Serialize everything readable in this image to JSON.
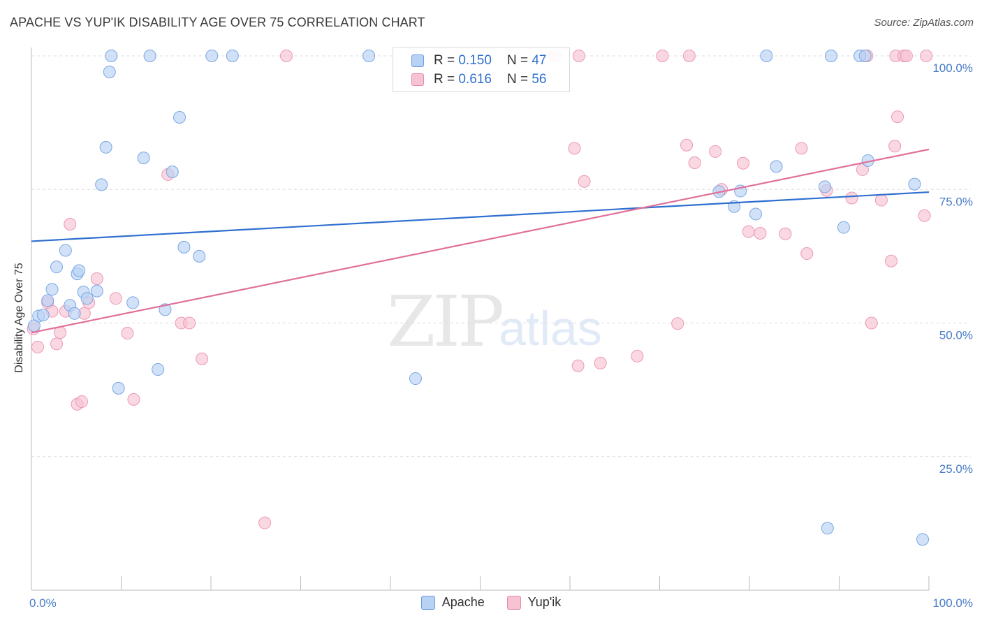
{
  "title": "APACHE VS YUP'IK DISABILITY AGE OVER 75 CORRELATION CHART",
  "source": "Source: ZipAtlas.com",
  "watermark": {
    "zip": "ZIP",
    "atlas": "atlas"
  },
  "colors": {
    "apache": "#2f6fd0",
    "apache_fill": "#b8d2f4",
    "yupik": "#e0709a",
    "yupik_fill": "#f7c3d3"
  },
  "legend": {
    "apache": {
      "r_label": "R = ",
      "r_value": "0.150",
      "n_label": "N = ",
      "n_value": "47"
    },
    "yupik": {
      "r_label": "R = ",
      "r_value": "0.616",
      "n_label": "N = ",
      "n_value": "56"
    }
  },
  "chart_data": {
    "type": "scatter",
    "title": "APACHE VS YUP'IK DISABILITY AGE OVER 75 CORRELATION CHART",
    "xlabel": "",
    "ylabel": "Disability Age Over 75",
    "xlim": [
      0,
      100
    ],
    "ylim": [
      0,
      105
    ],
    "y_ticks": [
      "25.0%",
      "50.0%",
      "75.0%",
      "100.0%"
    ],
    "y_tick_values": [
      25,
      50,
      75,
      100
    ],
    "x_tick_labels": {
      "left": "0.0%",
      "right": "100.0%"
    },
    "grid": "horizontal dashed",
    "legend_position": "top-center",
    "series": [
      {
        "name": "Apache",
        "r": 0.15,
        "n": 47,
        "trend": [
          [
            0,
            65.3
          ],
          [
            100,
            74.5
          ]
        ],
        "points": [
          [
            0.3,
            49.5
          ],
          [
            0.8,
            51.3
          ],
          [
            1.3,
            51.5
          ],
          [
            1.8,
            54.2
          ],
          [
            2.3,
            56.3
          ],
          [
            2.8,
            60.5
          ],
          [
            3.8,
            63.6
          ],
          [
            4.3,
            53.3
          ],
          [
            4.8,
            51.8
          ],
          [
            5.1,
            59.2
          ],
          [
            5.3,
            59.8
          ],
          [
            5.8,
            55.8
          ],
          [
            6.2,
            54.6
          ],
          [
            7.3,
            56.0
          ],
          [
            7.8,
            75.9
          ],
          [
            8.3,
            82.9
          ],
          [
            8.7,
            97.0
          ],
          [
            8.9,
            100.0
          ],
          [
            9.7,
            37.8
          ],
          [
            11.3,
            53.8
          ],
          [
            12.5,
            80.9
          ],
          [
            13.2,
            100.0
          ],
          [
            14.1,
            41.3
          ],
          [
            14.9,
            52.5
          ],
          [
            15.7,
            78.3
          ],
          [
            16.5,
            88.5
          ],
          [
            17.0,
            64.2
          ],
          [
            18.7,
            62.5
          ],
          [
            20.1,
            100.0
          ],
          [
            22.4,
            100.0
          ],
          [
            37.6,
            100.0
          ],
          [
            42.8,
            39.6
          ],
          [
            76.6,
            74.6
          ],
          [
            78.3,
            71.8
          ],
          [
            79.0,
            74.7
          ],
          [
            80.7,
            70.4
          ],
          [
            81.9,
            100.0
          ],
          [
            83.0,
            79.3
          ],
          [
            88.4,
            75.5
          ],
          [
            88.7,
            11.6
          ],
          [
            89.1,
            100.0
          ],
          [
            90.5,
            67.9
          ],
          [
            92.3,
            100.0
          ],
          [
            92.9,
            100.0
          ],
          [
            93.2,
            80.4
          ],
          [
            98.4,
            76.0
          ],
          [
            99.3,
            9.5
          ]
        ]
      },
      {
        "name": "Yup'ik",
        "r": 0.616,
        "n": 56,
        "trend": [
          [
            0,
            48.2
          ],
          [
            100,
            82.5
          ]
        ],
        "points": [
          [
            0.2,
            48.9
          ],
          [
            0.7,
            45.5
          ],
          [
            1.8,
            53.8
          ],
          [
            2.3,
            52.2
          ],
          [
            2.8,
            46.1
          ],
          [
            3.2,
            48.2
          ],
          [
            3.8,
            52.2
          ],
          [
            4.3,
            68.5
          ],
          [
            5.1,
            34.8
          ],
          [
            5.6,
            35.3
          ],
          [
            5.9,
            51.8
          ],
          [
            6.4,
            53.8
          ],
          [
            7.3,
            58.3
          ],
          [
            9.4,
            54.6
          ],
          [
            10.7,
            48.1
          ],
          [
            11.4,
            35.7
          ],
          [
            15.2,
            77.8
          ],
          [
            16.7,
            50.0
          ],
          [
            17.6,
            50.0
          ],
          [
            19.0,
            43.3
          ],
          [
            26.0,
            12.6
          ],
          [
            28.4,
            100.0
          ],
          [
            58.3,
            100.0
          ],
          [
            60.5,
            82.7
          ],
          [
            60.9,
            42.0
          ],
          [
            61.6,
            76.5
          ],
          [
            63.4,
            42.5
          ],
          [
            67.5,
            43.8
          ],
          [
            70.3,
            100.0
          ],
          [
            72.0,
            49.9
          ],
          [
            73.0,
            83.3
          ],
          [
            73.3,
            100.0
          ],
          [
            73.9,
            80.0
          ],
          [
            76.2,
            82.1
          ],
          [
            76.9,
            75.0
          ],
          [
            79.3,
            79.9
          ],
          [
            79.9,
            67.1
          ],
          [
            81.2,
            66.8
          ],
          [
            84.0,
            66.7
          ],
          [
            85.8,
            82.7
          ],
          [
            86.4,
            63.0
          ],
          [
            88.6,
            74.8
          ],
          [
            91.4,
            73.4
          ],
          [
            92.6,
            78.7
          ],
          [
            93.1,
            100.0
          ],
          [
            93.6,
            50.0
          ],
          [
            94.7,
            73.0
          ],
          [
            95.8,
            61.6
          ],
          [
            96.3,
            100.0
          ],
          [
            96.2,
            83.1
          ],
          [
            96.5,
            88.6
          ],
          [
            97.2,
            100.0
          ],
          [
            97.5,
            100.0
          ],
          [
            99.5,
            70.1
          ],
          [
            99.7,
            100.0
          ],
          [
            61.0,
            100.0
          ]
        ]
      }
    ]
  },
  "bottom_legend": {
    "apache": "Apache",
    "yupik": "Yup'ik"
  }
}
